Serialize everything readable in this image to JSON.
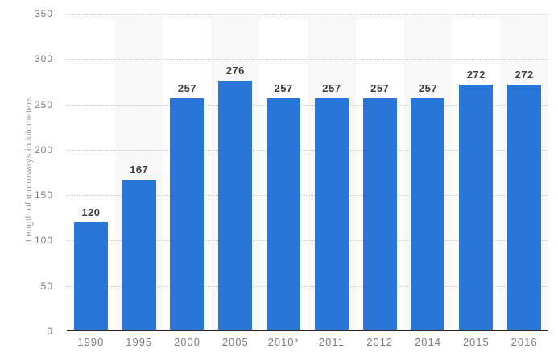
{
  "chart_data": {
    "type": "bar",
    "categories": [
      "1990",
      "1995",
      "2000",
      "2005",
      "2010*",
      "2011",
      "2012",
      "2014",
      "2015",
      "2016"
    ],
    "values": [
      120,
      167,
      257,
      276,
      257,
      257,
      257,
      257,
      272,
      272
    ],
    "title": "",
    "xlabel": "",
    "ylabel": "Length of motorways in kilometers",
    "ylim": [
      0,
      350
    ],
    "ytick_step": 50,
    "grid": "horizontal-dotted",
    "legend": "none",
    "striped_categories": [
      "1995",
      "2005",
      "2011",
      "2014",
      "2016"
    ],
    "colors": {
      "bar": "#2a76d8",
      "stripe": "#f8f8f8",
      "gridline": "#c9c9c9",
      "axis_line": "#262626",
      "tick_text": "#7d7d7d",
      "value_label_text": "#3c3c3c",
      "ylabel_text": "#9b9b9b",
      "background": "#ffffff"
    }
  }
}
